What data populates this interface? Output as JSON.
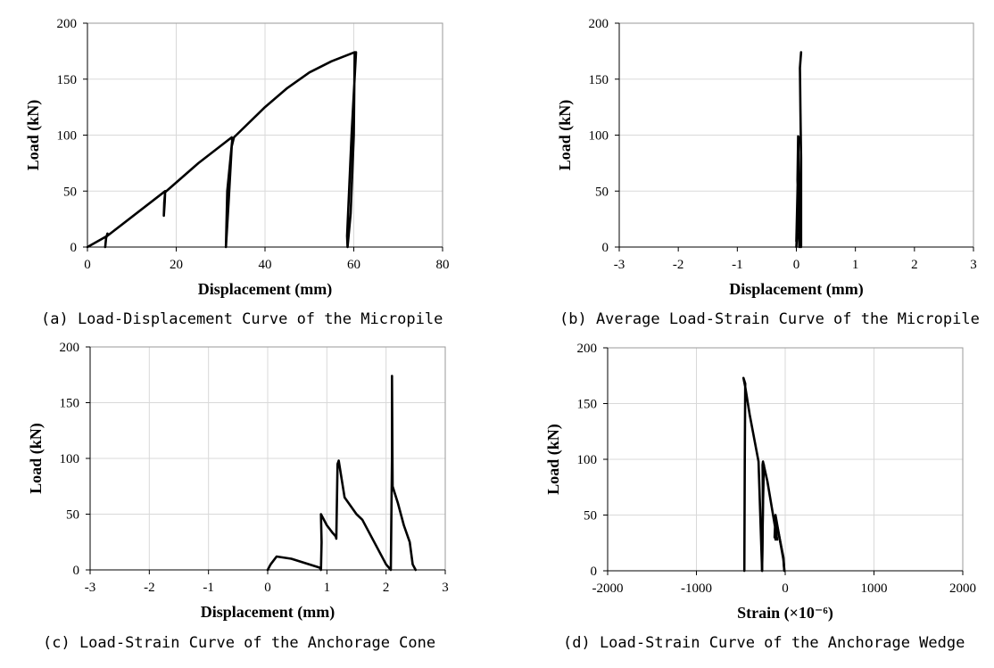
{
  "chart_data": [
    {
      "type": "line",
      "caption": "(a) Load-Displacement Curve of the Micropile",
      "xlabel": "Displacement (mm)",
      "ylabel": "Load (kN)",
      "xlim": [
        0,
        80
      ],
      "ylim": [
        0,
        200
      ],
      "xticks": [
        0,
        20,
        40,
        60,
        80
      ],
      "yticks": [
        0,
        50,
        100,
        150,
        200
      ],
      "xtick_labels": [
        "0",
        "20",
        "40",
        "60",
        "80"
      ],
      "ytick_labels": [
        "0",
        "50",
        "100",
        "150",
        "200"
      ],
      "grid": true,
      "series": [
        {
          "x": [
            0,
            4.5,
            17.5,
            17.4,
            17.2,
            17.3,
            17.5,
            25,
            32.5,
            32.6,
            31.5,
            31.2,
            31.8,
            32.5,
            33.0,
            40,
            45,
            50,
            55,
            60.2,
            60.0,
            59.3,
            58.6,
            58.5,
            59.5,
            60.5
          ],
          "y": [
            0,
            10,
            50,
            40,
            28,
            40,
            49,
            75,
            98,
            95,
            50,
            0,
            40,
            90,
            98,
            125,
            142,
            156,
            166,
            174,
            100,
            30,
            0,
            10,
            100,
            174
          ]
        },
        {
          "x": [
            4.0,
            4.2,
            4.5
          ],
          "y": [
            0,
            8,
            12
          ]
        }
      ]
    },
    {
      "type": "line",
      "caption": "(b) Average Load-Strain Curve of the Micropile",
      "xlabel": "Displacement (mm)",
      "ylabel": "Load (kN)",
      "xlim": [
        -3,
        3
      ],
      "ylim": [
        0,
        200
      ],
      "xticks": [
        -3,
        -2,
        -1,
        0,
        1,
        2,
        3
      ],
      "yticks": [
        0,
        50,
        100,
        150,
        200
      ],
      "xtick_labels": [
        "-3",
        "-2",
        "-1",
        "0",
        "1",
        "2",
        "3"
      ],
      "ytick_labels": [
        "0",
        "50",
        "100",
        "150",
        "200"
      ],
      "grid": false,
      "series": [
        {
          "x": [
            0.0,
            0.01,
            0.0,
            0.02,
            0.04,
            0.03,
            0.02,
            0.05,
            0.04,
            0.03,
            0.06,
            0.08,
            0.08,
            0.07,
            0.06,
            0.08
          ],
          "y": [
            0,
            12,
            5,
            50,
            98,
            99,
            60,
            0,
            40,
            95,
            10,
            0,
            80,
            120,
            160,
            174
          ]
        }
      ]
    },
    {
      "type": "line",
      "caption": "(c) Load-Strain Curve of the Anchorage Cone",
      "xlabel": "Displacement (mm)",
      "ylabel": "Load (kN)",
      "xlim": [
        -3,
        3
      ],
      "ylim": [
        0,
        200
      ],
      "xticks": [
        -3,
        -2,
        -1,
        0,
        1,
        2,
        3
      ],
      "yticks": [
        0,
        50,
        100,
        150,
        200
      ],
      "xtick_labels": [
        "-3",
        "-2",
        "-1",
        "0",
        "1",
        "2",
        "3"
      ],
      "ytick_labels": [
        "0",
        "50",
        "100",
        "150",
        "200"
      ],
      "grid": true,
      "series": [
        {
          "x": [
            0,
            0.05,
            0.15,
            0.4,
            0.7,
            0.88,
            0.9,
            0.91,
            0.9,
            1.0,
            1.1,
            1.15,
            1.16,
            1.18,
            1.2,
            1.3,
            1.5,
            1.6,
            1.8,
            2.0,
            2.08,
            2.1,
            2.1,
            2.11,
            2.2,
            2.3,
            2.4,
            2.45,
            2.5
          ],
          "y": [
            0,
            5,
            12,
            10,
            5,
            2,
            0,
            25,
            50,
            40,
            33,
            30,
            28,
            95,
            98,
            65,
            50,
            45,
            25,
            5,
            0,
            100,
            174,
            75,
            60,
            40,
            25,
            5,
            0
          ]
        }
      ]
    },
    {
      "type": "line",
      "caption": "(d) Load-Strain Curve of the Anchorage Wedge",
      "xlabel": "Strain (×10⁻⁶)",
      "ylabel": "Load (kN)",
      "xlim": [
        -2000,
        2000
      ],
      "ylim": [
        0,
        200
      ],
      "xticks": [
        -2000,
        -1000,
        0,
        1000,
        2000
      ],
      "yticks": [
        0,
        50,
        100,
        150,
        200
      ],
      "xtick_labels": [
        "-2000",
        "-1000",
        "0",
        "1000",
        "2000"
      ],
      "ytick_labels": [
        "0",
        "50",
        "100",
        "150",
        "200"
      ],
      "grid": true,
      "series": [
        {
          "x": [
            -10,
            -20,
            -110,
            -120,
            -90,
            -200,
            -250,
            -255,
            -250,
            -260,
            -300,
            -400,
            -450,
            -470,
            -450,
            -455,
            -460
          ],
          "y": [
            0,
            10,
            50,
            30,
            28,
            80,
            98,
            95,
            60,
            0,
            98,
            140,
            165,
            173,
            168,
            100,
            0
          ]
        },
        {
          "x": [
            -260,
            -250,
            -240,
            -250
          ],
          "y": [
            0,
            70,
            95,
            60
          ]
        },
        {
          "x": [
            -110,
            -90,
            -20,
            -10
          ],
          "y": [
            28,
            40,
            12,
            0
          ]
        }
      ]
    }
  ]
}
